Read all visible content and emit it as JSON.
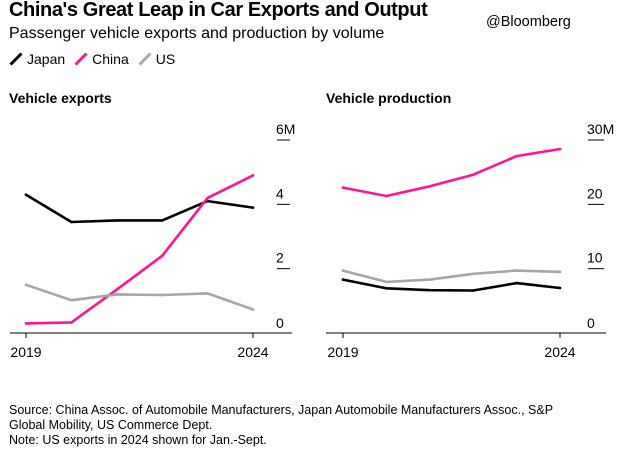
{
  "header": {
    "title": "China's Great Leap in Car Exports and Output",
    "credit": "@Bloomberg",
    "subtitle": "Passenger vehicle exports and production by volume"
  },
  "legend": [
    {
      "name": "Japan",
      "color": "#000000"
    },
    {
      "name": "China",
      "color": "#ff1493"
    },
    {
      "name": "US",
      "color": "#a6a6a6"
    }
  ],
  "colors": {
    "japan": "#000000",
    "china": "#ff1493",
    "us": "#a6a6a6",
    "axis": "#000000",
    "grid": "#cccccc"
  },
  "chart_data": [
    {
      "type": "line",
      "title": "Vehicle exports",
      "x": [
        2019,
        2020,
        2021,
        2022,
        2023,
        2024
      ],
      "xtick_labels": [
        "2019",
        "2024"
      ],
      "ytick_labels": [
        "0",
        "2",
        "4",
        "6M"
      ],
      "ylim": [
        0,
        6
      ],
      "unit": "million vehicles",
      "series": [
        {
          "name": "Japan",
          "color": "#000000",
          "values": [
            4.3,
            3.45,
            3.5,
            3.5,
            4.1,
            3.9
          ]
        },
        {
          "name": "China",
          "color": "#ff1493",
          "values": [
            0.3,
            0.33,
            1.35,
            2.4,
            4.2,
            4.9
          ]
        },
        {
          "name": "US",
          "color": "#a6a6a6",
          "values": [
            1.5,
            1.02,
            1.2,
            1.18,
            1.23,
            0.73
          ]
        }
      ]
    },
    {
      "type": "line",
      "title": "Vehicle production",
      "x": [
        2019,
        2020,
        2021,
        2022,
        2023,
        2024
      ],
      "xtick_labels": [
        "2019",
        "2024"
      ],
      "ytick_labels": [
        "0",
        "10",
        "20",
        "30M"
      ],
      "ylim": [
        0,
        30
      ],
      "unit": "million vehicles",
      "series": [
        {
          "name": "Japan",
          "color": "#000000",
          "values": [
            8.3,
            6.95,
            6.65,
            6.6,
            7.75,
            7.0
          ]
        },
        {
          "name": "China",
          "color": "#ff1493",
          "values": [
            22.6,
            21.3,
            22.8,
            24.6,
            27.5,
            28.6
          ]
        },
        {
          "name": "US",
          "color": "#a6a6a6",
          "values": [
            9.7,
            7.95,
            8.3,
            9.2,
            9.7,
            9.5
          ]
        }
      ]
    }
  ],
  "footer": {
    "source_line1": "Source: China Assoc. of Automobile Manufacturers, Japan Automobile Manufacturers Assoc., S&P",
    "source_line2": "Global Mobility, US Commerce Dept.",
    "note": "Note: US exports in 2024 shown for Jan.-Sept."
  }
}
